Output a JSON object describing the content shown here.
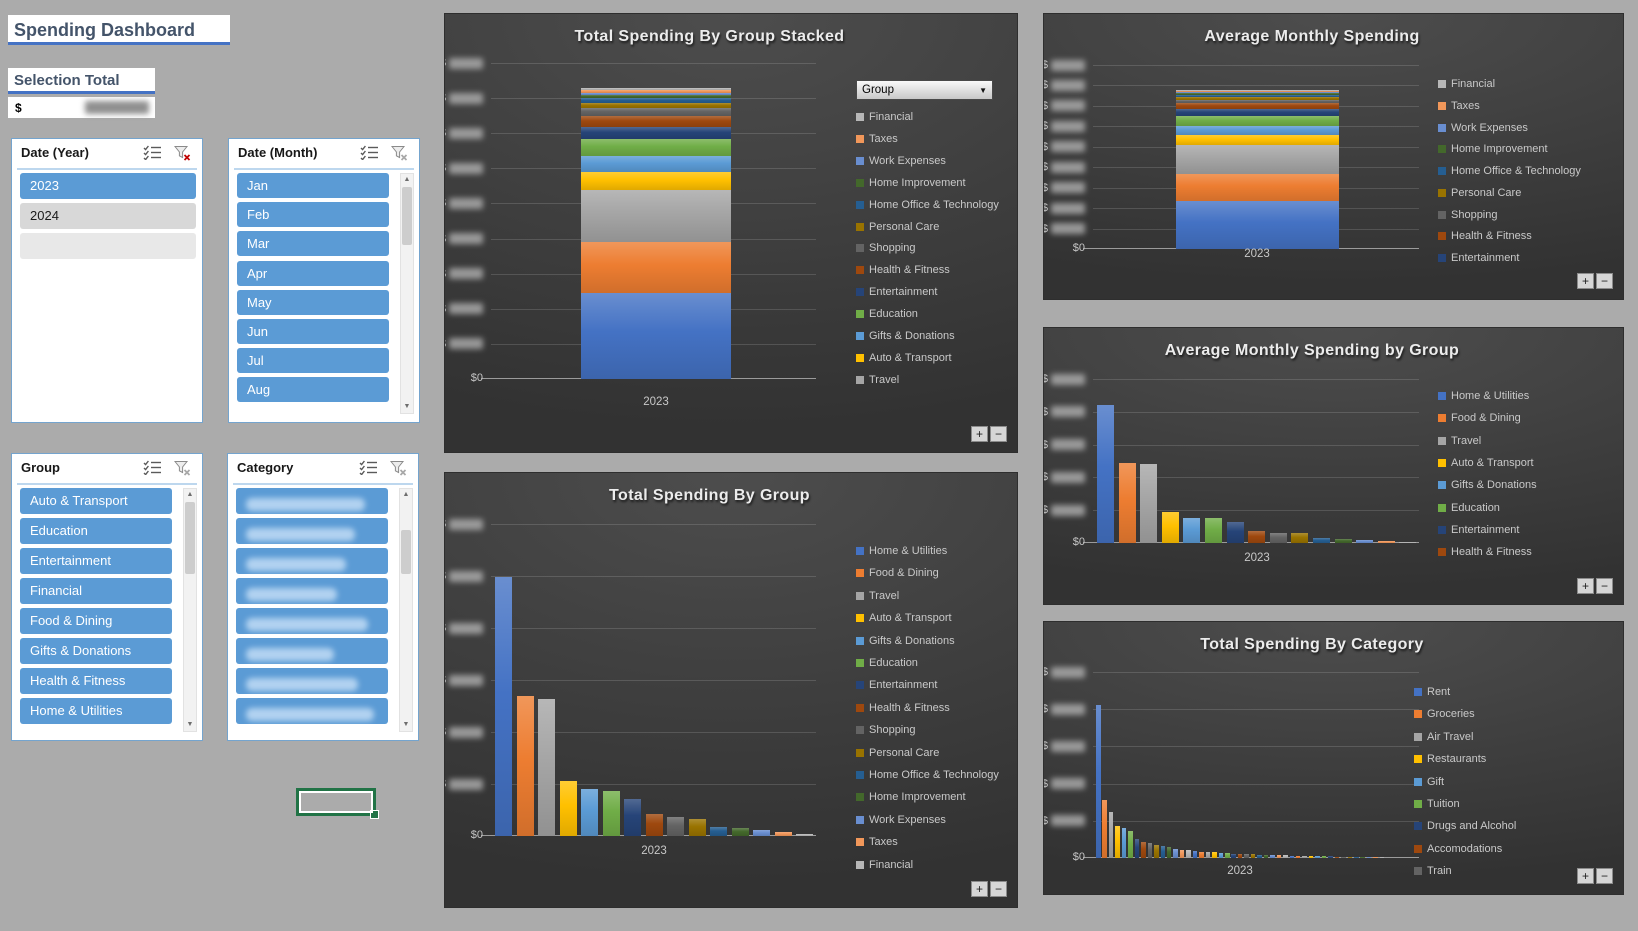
{
  "page": {
    "title": "Spending Dashboard"
  },
  "selection_total": {
    "label": "Selection Total",
    "currency": "$",
    "value_redacted": true
  },
  "controls": {
    "expand": "+",
    "collapse": "−"
  },
  "slicers": [
    {
      "name": "Date (Year)",
      "filter_active": true,
      "has_scrollbar": false,
      "items": [
        {
          "label": "2023",
          "state": "selected"
        },
        {
          "label": "2024",
          "state": "unselected"
        },
        {
          "label": "",
          "state": "blank"
        }
      ]
    },
    {
      "name": "Date (Month)",
      "filter_active": false,
      "has_scrollbar": true,
      "items": [
        {
          "label": "Jan",
          "state": "selected"
        },
        {
          "label": "Feb",
          "state": "selected"
        },
        {
          "label": "Mar",
          "state": "selected"
        },
        {
          "label": "Apr",
          "state": "selected"
        },
        {
          "label": "May",
          "state": "selected"
        },
        {
          "label": "Jun",
          "state": "selected"
        },
        {
          "label": "Jul",
          "state": "selected"
        },
        {
          "label": "Aug",
          "state": "selected"
        }
      ]
    },
    {
      "name": "Group",
      "filter_active": false,
      "has_scrollbar": true,
      "items": [
        {
          "label": "Auto & Transport",
          "state": "selected"
        },
        {
          "label": "Education",
          "state": "selected"
        },
        {
          "label": "Entertainment",
          "state": "selected"
        },
        {
          "label": "Financial",
          "state": "selected"
        },
        {
          "label": "Food & Dining",
          "state": "selected"
        },
        {
          "label": "Gifts & Donations",
          "state": "selected"
        },
        {
          "label": "Health & Fitness",
          "state": "selected"
        },
        {
          "label": "Home & Utilities",
          "state": "selected"
        }
      ]
    },
    {
      "name": "Category",
      "filter_active": false,
      "has_scrollbar": true,
      "items": [
        {
          "label": "",
          "state": "selected",
          "redacted": true
        },
        {
          "label": "",
          "state": "selected",
          "redacted": true
        },
        {
          "label": "",
          "state": "selected",
          "redacted": true
        },
        {
          "label": "",
          "state": "selected",
          "redacted": true
        },
        {
          "label": "",
          "state": "selected",
          "redacted": true
        },
        {
          "label": "",
          "state": "selected",
          "redacted": true
        },
        {
          "label": "",
          "state": "selected",
          "redacted": true
        },
        {
          "label": "",
          "state": "selected",
          "redacted": true
        }
      ]
    }
  ],
  "groups": [
    {
      "name": "Home & Utilities",
      "color": "#4472C4"
    },
    {
      "name": "Food & Dining",
      "color": "#ED7D31"
    },
    {
      "name": "Travel",
      "color": "#A5A5A5"
    },
    {
      "name": "Auto & Transport",
      "color": "#FFC000"
    },
    {
      "name": "Gifts & Donations",
      "color": "#5B9BD5"
    },
    {
      "name": "Education",
      "color": "#70AD47"
    },
    {
      "name": "Entertainment",
      "color": "#264478"
    },
    {
      "name": "Health & Fitness",
      "color": "#9E480E"
    },
    {
      "name": "Shopping",
      "color": "#636363"
    },
    {
      "name": "Personal Care",
      "color": "#997300"
    },
    {
      "name": "Home Office & Technology",
      "color": "#255E91"
    },
    {
      "name": "Home Improvement",
      "color": "#43682B"
    },
    {
      "name": "Work Expenses",
      "color": "#698ED0"
    },
    {
      "name": "Taxes",
      "color": "#F1975A"
    },
    {
      "name": "Financial",
      "color": "#B7B7B7"
    }
  ],
  "chart_data": [
    {
      "id": "total-spending-by-group-stacked",
      "type": "stacked-bar",
      "title": "Total Spending By Group Stacked",
      "x_label": "2023",
      "x_categories": [
        "2023"
      ],
      "field_button": "Group",
      "y_axis": {
        "prefix": "$",
        "baseline": "$0",
        "gridline_count": 9,
        "labels_redacted": true
      },
      "stack_fraction_of_axis": 0.92,
      "values_note": "axis labels blurred in source; shares are estimated fractions of the stack",
      "series": [
        {
          "name": "Home & Utilities",
          "share": 0.3
        },
        {
          "name": "Food & Dining",
          "share": 0.175
        },
        {
          "name": "Travel",
          "share": 0.18
        },
        {
          "name": "Auto & Transport",
          "share": 0.065
        },
        {
          "name": "Gifts & Donations",
          "share": 0.055
        },
        {
          "name": "Education",
          "share": 0.06
        },
        {
          "name": "Entertainment",
          "share": 0.042
        },
        {
          "name": "Health & Fitness",
          "share": 0.038
        },
        {
          "name": "Shopping",
          "share": 0.025
        },
        {
          "name": "Personal Care",
          "share": 0.02
        },
        {
          "name": "Home Office & Technology",
          "share": 0.015
        },
        {
          "name": "Home Improvement",
          "share": 0.012
        },
        {
          "name": "Work Expenses",
          "share": 0.008
        },
        {
          "name": "Taxes",
          "share": 0.01
        },
        {
          "name": "Financial",
          "share": 0.005
        }
      ],
      "legend": {
        "position": "right",
        "truncated": true,
        "items": [
          "Financial",
          "Taxes",
          "Work Expenses",
          "Home Improvement",
          "Home Office & Technology",
          "Personal Care",
          "Shopping",
          "Health & Fitness",
          "Entertainment",
          "Education",
          "Gifts & Donations",
          "Auto & Transport",
          "Travel"
        ]
      }
    },
    {
      "id": "average-monthly-spending",
      "type": "stacked-bar",
      "title": "Average Monthly Spending",
      "x_label": "2023",
      "x_categories": [
        "2023"
      ],
      "y_axis": {
        "prefix": "$",
        "baseline": "$0",
        "gridline_count": 9,
        "labels_redacted": true
      },
      "stack_fraction_of_axis": 0.865,
      "series": [
        {
          "name": "Home & Utilities",
          "share": 0.305
        },
        {
          "name": "Food & Dining",
          "share": 0.17
        },
        {
          "name": "Travel",
          "share": 0.183
        },
        {
          "name": "Auto & Transport",
          "share": 0.067
        },
        {
          "name": "Gifts & Donations",
          "share": 0.057
        },
        {
          "name": "Education",
          "share": 0.065
        },
        {
          "name": "Entertainment",
          "share": 0.042
        },
        {
          "name": "Health & Fitness",
          "share": 0.038
        },
        {
          "name": "Shopping",
          "share": 0.021
        },
        {
          "name": "Personal Care",
          "share": 0.017
        },
        {
          "name": "Home Office & Technology",
          "share": 0.013
        },
        {
          "name": "Home Improvement",
          "share": 0.01
        },
        {
          "name": "Work Expenses",
          "share": 0.01
        },
        {
          "name": "Taxes",
          "share": 0.008
        },
        {
          "name": "Financial",
          "share": 0.004
        }
      ],
      "legend": {
        "position": "right",
        "truncated": true,
        "items": [
          "Financial",
          "Taxes",
          "Work Expenses",
          "Home Improvement",
          "Home Office & Technology",
          "Personal Care",
          "Shopping",
          "Health & Fitness",
          "Entertainment"
        ]
      }
    },
    {
      "id": "average-monthly-spending-by-group",
      "type": "bar",
      "title": "Average Monthly Spending by Group",
      "x_label": "2023",
      "x_categories": [
        "2023"
      ],
      "y_axis": {
        "prefix": "$",
        "baseline": "$0",
        "gridline_count": 5,
        "labels_redacted": true
      },
      "values_note": "axis labels blurred in source; values are fractions of axis maximum",
      "bars": [
        {
          "name": "Home & Utilities",
          "value": 0.84
        },
        {
          "name": "Food & Dining",
          "value": 0.49
        },
        {
          "name": "Travel",
          "value": 0.48
        },
        {
          "name": "Auto & Transport",
          "value": 0.19
        },
        {
          "name": "Gifts & Donations",
          "value": 0.15
        },
        {
          "name": "Education",
          "value": 0.15
        },
        {
          "name": "Entertainment",
          "value": 0.13
        },
        {
          "name": "Health & Fitness",
          "value": 0.075
        },
        {
          "name": "Shopping",
          "value": 0.063
        },
        {
          "name": "Personal Care",
          "value": 0.061
        },
        {
          "name": "Home Office & Technology",
          "value": 0.031
        },
        {
          "name": "Home Improvement",
          "value": 0.027
        },
        {
          "name": "Work Expenses",
          "value": 0.02
        },
        {
          "name": "Taxes",
          "value": 0.014
        },
        {
          "name": "Financial",
          "value": 0.006
        }
      ],
      "legend": {
        "position": "right",
        "truncated": true,
        "items": [
          "Home & Utilities",
          "Food & Dining",
          "Travel",
          "Auto & Transport",
          "Gifts & Donations",
          "Education",
          "Entertainment",
          "Health & Fitness"
        ]
      }
    },
    {
      "id": "total-spending-by-group",
      "type": "bar",
      "title": "Total Spending By Group",
      "x_label": "2023",
      "x_categories": [
        "2023"
      ],
      "y_axis": {
        "prefix": "$",
        "baseline": "$0",
        "gridline_count": 6,
        "labels_redacted": true
      },
      "bars": [
        {
          "name": "Home & Utilities",
          "value": 0.83
        },
        {
          "name": "Food & Dining",
          "value": 0.45
        },
        {
          "name": "Travel",
          "value": 0.44
        },
        {
          "name": "Auto & Transport",
          "value": 0.175
        },
        {
          "name": "Gifts & Donations",
          "value": 0.15
        },
        {
          "name": "Education",
          "value": 0.145
        },
        {
          "name": "Entertainment",
          "value": 0.12
        },
        {
          "name": "Health & Fitness",
          "value": 0.07
        },
        {
          "name": "Shopping",
          "value": 0.06
        },
        {
          "name": "Personal Care",
          "value": 0.055
        },
        {
          "name": "Home Office & Technology",
          "value": 0.03
        },
        {
          "name": "Home Improvement",
          "value": 0.025
        },
        {
          "name": "Work Expenses",
          "value": 0.02
        },
        {
          "name": "Taxes",
          "value": 0.013
        },
        {
          "name": "Financial",
          "value": 0.006
        }
      ],
      "legend": {
        "position": "right",
        "truncated": false,
        "items": [
          "Home & Utilities",
          "Food & Dining",
          "Travel",
          "Auto & Transport",
          "Gifts & Donations",
          "Education",
          "Entertainment",
          "Health & Fitness",
          "Shopping",
          "Personal Care",
          "Home Office & Technology",
          "Home Improvement",
          "Work Expenses",
          "Taxes",
          "Financial"
        ]
      }
    },
    {
      "id": "total-spending-by-category",
      "type": "bar",
      "title": "Total Spending By Category",
      "x_label": "2023",
      "x_categories": [
        "2023"
      ],
      "y_axis": {
        "prefix": "$",
        "baseline": "$0",
        "gridline_count": 5,
        "labels_redacted": true
      },
      "bar_names": [
        "Rent",
        "Groceries",
        "Air Travel",
        "Restaurants",
        "Gift",
        "Tuition",
        "Drugs and Alcohol",
        "Accomodations",
        "Train"
      ],
      "values": [
        0.82,
        0.31,
        0.25,
        0.17,
        0.16,
        0.147,
        0.1,
        0.086,
        0.081,
        0.072,
        0.063,
        0.057,
        0.05,
        0.045,
        0.041,
        0.038,
        0.035,
        0.032,
        0.03,
        0.028,
        0.026,
        0.024,
        0.022,
        0.02,
        0.019,
        0.018,
        0.017,
        0.016,
        0.015,
        0.014,
        0.013,
        0.012,
        0.011,
        0.01,
        0.01,
        0.009,
        0.009,
        0.008,
        0.008,
        0.007,
        0.007,
        0.006,
        0.006,
        0.005,
        0.005
      ],
      "legend": {
        "position": "right",
        "truncated": true,
        "items": [
          "Rent",
          "Groceries",
          "Air Travel",
          "Restaurants",
          "Gift",
          "Tuition",
          "Drugs and Alcohol",
          "Accomodations",
          "Train"
        ]
      }
    }
  ]
}
